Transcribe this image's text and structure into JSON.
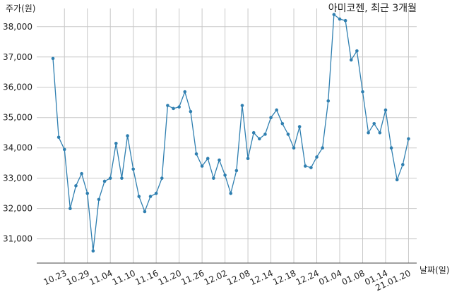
{
  "chart_data": {
    "type": "line",
    "title": "아미코젠, 최근 3개월",
    "ylabel": "주가(원)",
    "xlabel": "날짜(일)",
    "ylim": [
      30200,
      38600
    ],
    "yticks": [
      31000,
      32000,
      33000,
      34000,
      35000,
      36000,
      37000,
      38000
    ],
    "ytick_labels": [
      "31,000",
      "32,000",
      "33,000",
      "34,000",
      "35,000",
      "36,000",
      "37,000",
      "38,000"
    ],
    "xtick_positions": [
      2,
      6,
      10,
      14,
      18,
      22,
      26,
      30,
      34,
      38,
      42,
      46,
      50,
      54,
      58,
      62
    ],
    "xtick_labels": [
      "10.23",
      "10.29",
      "11.04",
      "11.10",
      "11.16",
      "11.20",
      "11.26",
      "12.02",
      "12.08",
      "12.14",
      "12.18",
      "12.24",
      "01.04",
      "01.08",
      "01.14",
      "21.01.20"
    ],
    "grid": true,
    "accent_color": "#2f7fb0",
    "values": [
      36950,
      34350,
      33950,
      32000,
      32750,
      33150,
      32500,
      30600,
      32300,
      32900,
      33000,
      34150,
      33000,
      34400,
      33300,
      32400,
      31900,
      32400,
      32500,
      33000,
      35400,
      35300,
      35350,
      35850,
      35200,
      33800,
      33400,
      33650,
      33000,
      33600,
      33100,
      32500,
      33250,
      35400,
      33650,
      34500,
      34300,
      34450,
      35000,
      35250,
      34800,
      34450,
      34000,
      34700,
      33400,
      33350,
      33700,
      34000,
      35550,
      38400,
      38250,
      38200,
      36900,
      37200,
      35850,
      34500,
      34800,
      34500,
      35250,
      34000,
      32950,
      33450,
      34300
    ]
  }
}
